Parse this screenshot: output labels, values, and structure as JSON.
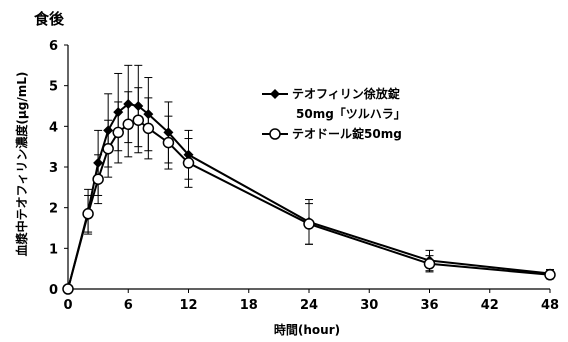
{
  "chart_data": {
    "type": "line",
    "title": "食後",
    "xlabel": "時間(hour)",
    "ylabel": "血漿中テオフィリン濃度(μg/mL)",
    "xlim": [
      0,
      48
    ],
    "ylim": [
      0,
      6
    ],
    "xticks": [
      0,
      6,
      12,
      18,
      24,
      30,
      36,
      42,
      48
    ],
    "yticks": [
      0,
      1,
      2,
      3,
      4,
      5,
      6
    ],
    "grid": false,
    "legend_position": "upper-right",
    "series": [
      {
        "name": "テオフィリン徐放錠 50mg「ツルハラ」",
        "marker": "diamond-filled",
        "color": "#000000",
        "x": [
          0,
          2,
          3,
          4,
          5,
          6,
          7,
          8,
          10,
          12,
          24,
          36,
          48
        ],
        "y": [
          0,
          1.9,
          3.1,
          3.9,
          4.35,
          4.55,
          4.5,
          4.3,
          3.85,
          3.3,
          1.65,
          0.7,
          0.38
        ],
        "err": [
          0,
          0.55,
          0.8,
          0.9,
          0.95,
          0.95,
          1.0,
          0.9,
          0.75,
          0.6,
          0.55,
          0.25,
          0.1
        ]
      },
      {
        "name": "テオドール錠50mg",
        "marker": "circle-open",
        "color": "#000000",
        "x": [
          0,
          2,
          3,
          4,
          5,
          6,
          7,
          8,
          10,
          12,
          24,
          36,
          48
        ],
        "y": [
          0,
          1.85,
          2.7,
          3.45,
          3.85,
          4.05,
          4.15,
          3.95,
          3.6,
          3.1,
          1.6,
          0.62,
          0.35
        ],
        "err": [
          0,
          0.45,
          0.6,
          0.7,
          0.75,
          0.8,
          0.8,
          0.75,
          0.65,
          0.6,
          0.5,
          0.2,
          0.1
        ]
      }
    ]
  }
}
